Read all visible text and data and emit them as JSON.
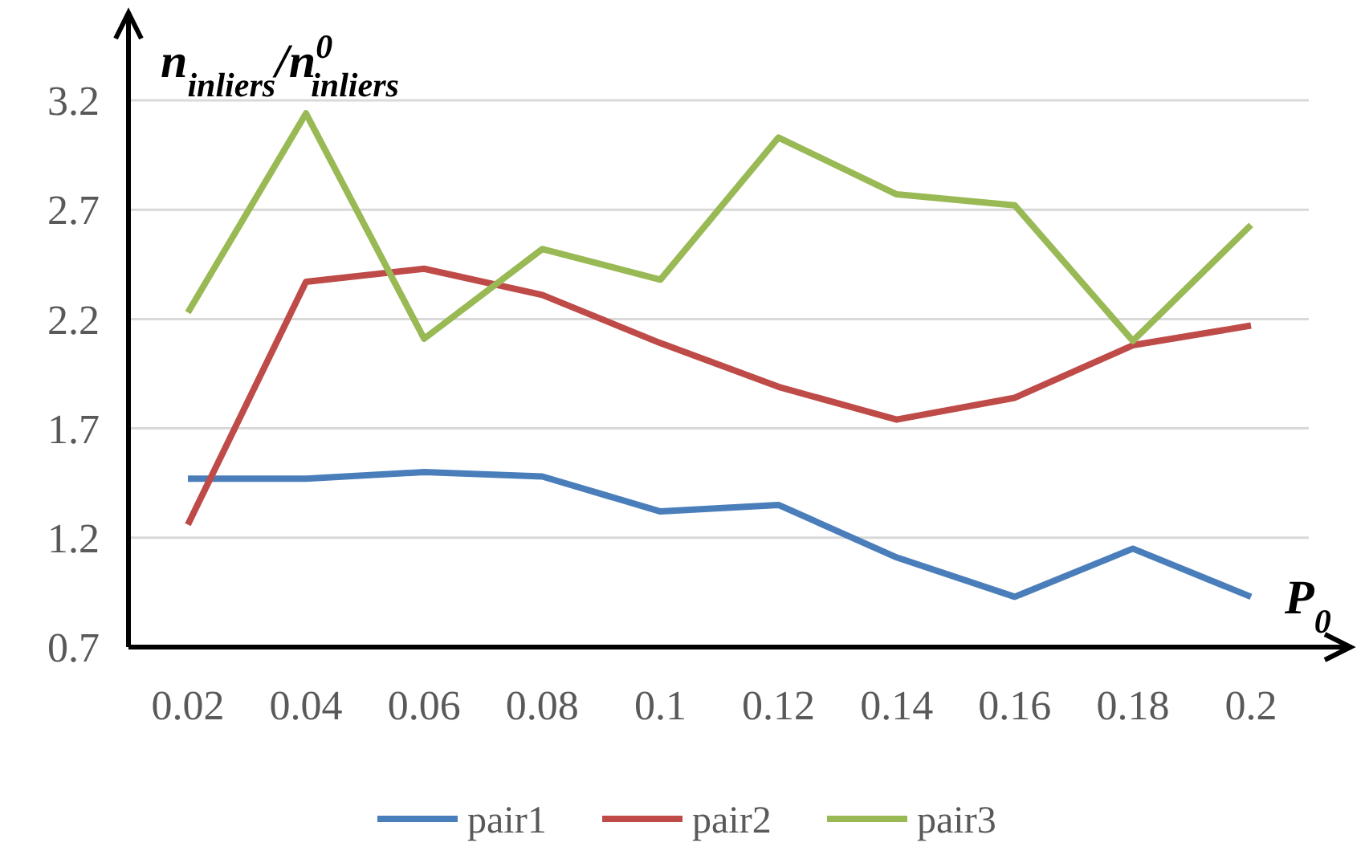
{
  "chart_data": {
    "type": "line",
    "xlabel": "P$_{0}$",
    "ylabel": "n$_{inliers}$/n$^{0}$$_{inliers}$",
    "categories": [
      "0.02",
      "0.04",
      "0.06",
      "0.08",
      "0.1",
      "0.12",
      "0.14",
      "0.16",
      "0.18",
      "0.2"
    ],
    "series": [
      {
        "name": "pair1",
        "color": "#4a7ebb",
        "values": [
          1.47,
          1.47,
          1.5,
          1.48,
          1.32,
          1.35,
          1.11,
          0.93,
          1.15,
          0.93
        ]
      },
      {
        "name": "pair2",
        "color": "#be4b48",
        "values": [
          1.26,
          2.37,
          2.43,
          2.31,
          2.09,
          1.89,
          1.74,
          1.84,
          2.08,
          2.17
        ]
      },
      {
        "name": "pair3",
        "color": "#98b954",
        "values": [
          2.23,
          3.14,
          2.11,
          2.52,
          2.38,
          3.03,
          2.77,
          2.72,
          2.1,
          2.63
        ]
      }
    ],
    "ylim": [
      0.7,
      3.6
    ],
    "yticks": [
      0.7,
      1.2,
      1.7,
      2.2,
      2.7,
      3.2
    ],
    "grid": "y",
    "legend": "bottom",
    "marker": "none",
    "line_style": "solid"
  }
}
